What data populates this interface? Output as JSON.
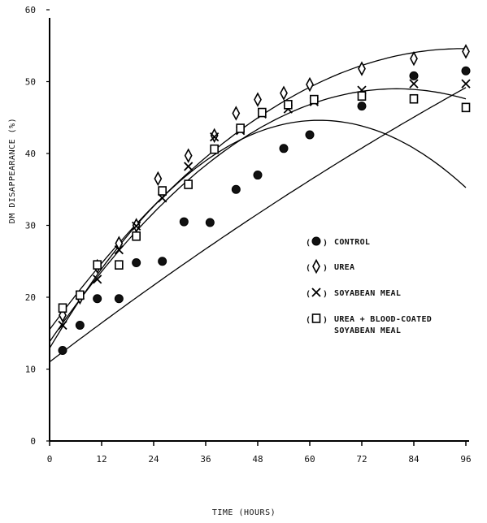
{
  "chart_data": {
    "type": "scatter",
    "xlabel": "TIME (HOURS)",
    "ylabel": "DM DISAPPEARANCE (%)",
    "xlim": [
      0,
      96
    ],
    "ylim": [
      0,
      60
    ],
    "x_ticks": [
      "0",
      "12",
      "24",
      "36",
      "48",
      "60",
      "72",
      "84",
      "96"
    ],
    "y_ticks": [
      "0",
      "10",
      "20",
      "30",
      "40",
      "50",
      "60"
    ],
    "grid": false,
    "legend_position": "right-middle",
    "series": [
      {
        "name": "CONTROL",
        "marker": "filled-circle",
        "x": [
          3,
          7,
          11,
          16,
          20,
          26,
          31,
          37,
          43,
          48,
          54,
          60,
          72,
          84,
          96
        ],
        "y": [
          12.6,
          16.1,
          19.8,
          19.8,
          24.8,
          25.0,
          30.5,
          30.4,
          35.0,
          37.0,
          40.7,
          42.6,
          46.6,
          50.8,
          51.5
        ],
        "fit": [
          11.0,
          0.46,
          -0.00065
        ]
      },
      {
        "name": "UREA",
        "marker": "diamond",
        "x": [
          3,
          7,
          11,
          16,
          20,
          25,
          32,
          38,
          43,
          48,
          54,
          60,
          72,
          84,
          96
        ],
        "y": [
          17.5,
          20.0,
          24.3,
          27.5,
          30.0,
          36.5,
          39.7,
          42.5,
          45.6,
          47.5,
          48.4,
          49.6,
          51.8,
          53.2,
          54.2
        ],
        "fit": [
          15.5,
          0.82,
          -0.0043
        ]
      },
      {
        "name": "SOYABEAN MEAL",
        "marker": "x",
        "x": [
          3,
          7,
          11,
          16,
          20,
          26,
          32,
          38,
          44,
          49,
          55,
          61,
          72,
          84,
          96
        ],
        "y": [
          16.1,
          20.3,
          22.5,
          26.6,
          29.9,
          33.8,
          38.2,
          42.3,
          43.2,
          45.5,
          46.2,
          47.2,
          48.8,
          49.7,
          49.7
        ],
        "fit": [
          13.8,
          0.88,
          -0.0055
        ]
      },
      {
        "name": "UREA + BLOOD-COATED SOYABEAN MEAL",
        "marker": "square",
        "x": [
          3,
          7,
          11,
          16,
          20,
          26,
          32,
          38,
          44,
          49,
          55,
          61,
          72,
          84,
          96
        ],
        "y": [
          18.5,
          20.3,
          24.5,
          24.5,
          28.5,
          34.8,
          35.7,
          40.6,
          43.5,
          45.7,
          46.8,
          47.5,
          48.0,
          47.6,
          46.4
        ],
        "fit": [
          12.9,
          1.02,
          -0.0082
        ]
      }
    ],
    "legend": [
      {
        "key": "control",
        "marker": "filled-circle",
        "lines": [
          "CONTROL"
        ]
      },
      {
        "key": "urea",
        "marker": "diamond",
        "lines": [
          "UREA"
        ]
      },
      {
        "key": "soyabean",
        "marker": "x",
        "lines": [
          "SOYABEAN MEAL"
        ]
      },
      {
        "key": "urea-blood",
        "marker": "square",
        "lines": [
          "UREA + BLOOD-COATED",
          "SOYABEAN MEAL"
        ]
      }
    ]
  }
}
